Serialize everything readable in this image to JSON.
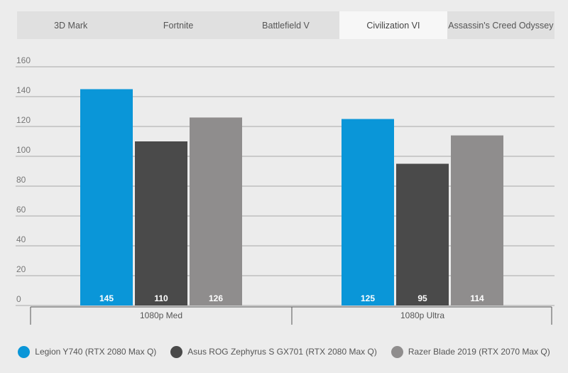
{
  "tabs": [
    {
      "label": "3D Mark",
      "active": false
    },
    {
      "label": "Fortnite",
      "active": false
    },
    {
      "label": "Battlefield V",
      "active": false
    },
    {
      "label": "Civilization VI",
      "active": true
    },
    {
      "label": "Assassin's Creed Odyssey",
      "active": false
    }
  ],
  "colors": {
    "legion": "#0a96d8",
    "asus": "#4a4a4a",
    "razer": "#8f8d8d"
  },
  "chart_data": {
    "type": "bar",
    "title": "",
    "xlabel": "",
    "ylabel": "",
    "ylim": [
      0,
      160
    ],
    "yticks": [
      0,
      20,
      40,
      60,
      80,
      100,
      120,
      140,
      160
    ],
    "grid": true,
    "legend_position": "bottom",
    "categories": [
      "1080p Med",
      "1080p Ultra"
    ],
    "series": [
      {
        "name": "Legion Y740 (RTX 2080 Max Q)",
        "values": [
          145,
          125
        ],
        "color": "#0a96d8"
      },
      {
        "name": "Asus ROG Zephyrus S GX701 (RTX 2080 Max Q)",
        "values": [
          110,
          95
        ],
        "color": "#4a4a4a"
      },
      {
        "name": "Razer Blade 2019 (RTX 2070 Max Q)",
        "values": [
          126,
          114
        ],
        "color": "#8f8d8d"
      }
    ]
  }
}
